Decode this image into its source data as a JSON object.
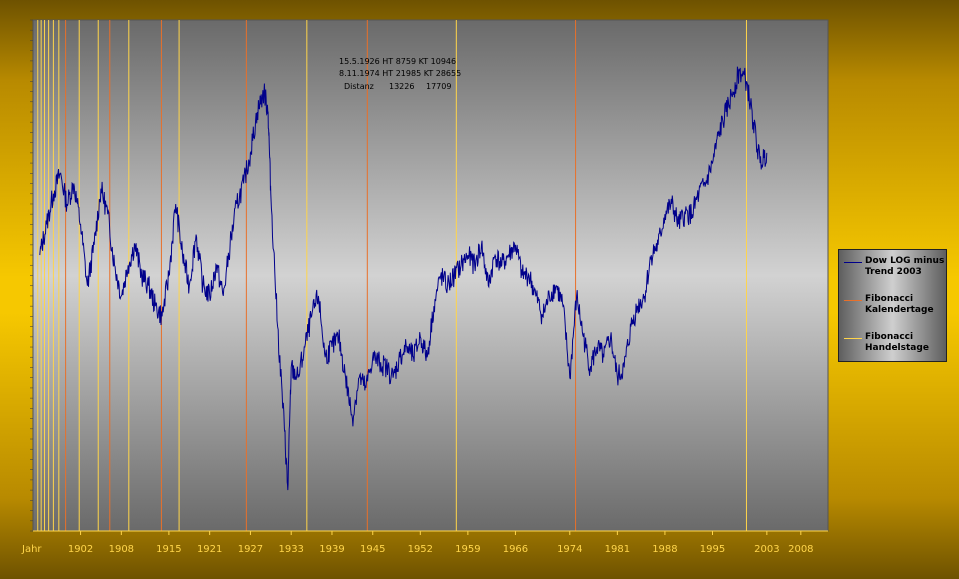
{
  "chart_data": {
    "type": "line",
    "title": "",
    "xlabel": "Jahr",
    "ylabel": "",
    "xlim": [
      1895,
      2012
    ],
    "ylim": [
      0,
      100
    ],
    "x_ticks": [
      "1902",
      "1908",
      "1915",
      "1921",
      "1927",
      "1933",
      "1939",
      "1945",
      "1952",
      "1959",
      "1966",
      "1974",
      "1981",
      "1988",
      "1995",
      "2003",
      "2008"
    ],
    "x_tick_values": [
      1902,
      1908,
      1915,
      1921,
      1927,
      1933,
      1939,
      1945,
      1952,
      1959,
      1966,
      1974,
      1981,
      1988,
      1995,
      2003,
      2008
    ],
    "grid": false,
    "legend_placement": "right",
    "legend": [
      {
        "label": "Dow LOG minus Trend 2003",
        "color": "#00008b"
      },
      {
        "label": "Fibonacci Kalendertage",
        "color": "#e8702a"
      },
      {
        "label": "Fibonacci Handelstage",
        "color": "#ffd54a"
      }
    ],
    "annotation": {
      "line1": "15.5.1926 HT 8759 KT 10946",
      "line2": "8.11.1974 HT 21985 KT 28655",
      "line3_label": "Distanz",
      "line3_ht": "13226",
      "line3_kt": "17709"
    },
    "series": [
      {
        "name": "Dow LOG minus Trend 2003",
        "color": "#00008b",
        "x": [
          1896,
          1897,
          1898,
          1899,
          1900,
          1901,
          1902,
          1903,
          1904,
          1905,
          1906,
          1907,
          1908,
          1909,
          1910,
          1911,
          1912,
          1913,
          1914,
          1915,
          1916,
          1917,
          1918,
          1919,
          1920,
          1921,
          1922,
          1923,
          1924,
          1925,
          1926,
          1927,
          1928,
          1929,
          1929.6,
          1930,
          1931,
          1932,
          1932.5,
          1933,
          1934,
          1935,
          1936,
          1937,
          1938,
          1939,
          1940,
          1941,
          1942,
          1943,
          1944,
          1945,
          1946,
          1947,
          1948,
          1949,
          1950,
          1951,
          1952,
          1953,
          1954,
          1955,
          1956,
          1957,
          1958,
          1959,
          1960,
          1961,
          1962,
          1963,
          1964,
          1965,
          1966,
          1967,
          1968,
          1969,
          1970,
          1971,
          1972,
          1973,
          1974,
          1975,
          1976,
          1977,
          1978,
          1979,
          1980,
          1981,
          1982,
          1983,
          1984,
          1985,
          1986,
          1987,
          1988,
          1989,
          1990,
          1991,
          1992,
          1993,
          1994,
          1995,
          1996,
          1997,
          1998,
          1999,
          2000,
          2001,
          2002,
          2003
        ],
        "y": [
          54,
          60,
          66,
          70,
          64,
          68,
          60,
          48,
          56,
          67,
          62,
          52,
          46,
          52,
          56,
          50,
          48,
          44,
          42,
          50,
          64,
          54,
          48,
          58,
          48,
          46,
          52,
          46,
          56,
          64,
          68,
          74,
          82,
          86,
          82,
          66,
          40,
          20,
          8,
          32,
          30,
          36,
          42,
          46,
          34,
          36,
          38,
          30,
          22,
          30,
          28,
          34,
          33,
          32,
          30,
          34,
          36,
          34,
          38,
          34,
          44,
          50,
          48,
          50,
          52,
          54,
          52,
          56,
          48,
          54,
          52,
          54,
          56,
          50,
          50,
          46,
          42,
          46,
          48,
          44,
          30,
          46,
          38,
          32,
          36,
          34,
          38,
          30,
          32,
          40,
          44,
          46,
          54,
          56,
          62,
          64,
          60,
          62,
          62,
          66,
          68,
          72,
          78,
          82,
          86,
          90,
          88,
          80,
          72,
          74
        ],
        "jitter": 2.2,
        "seed": 13
      }
    ],
    "vlines_kalendertage": [
      1899.8,
      1906.3,
      1913.9,
      1926.4,
      1944.2,
      1974.85
    ],
    "vlines_handelstage": [
      1895.7,
      1896.2,
      1896.7,
      1897.3,
      1898.0,
      1898.8,
      1901.8,
      1904.6,
      1909.1,
      1916.5,
      1935.3,
      1957.3,
      2000.0
    ]
  }
}
